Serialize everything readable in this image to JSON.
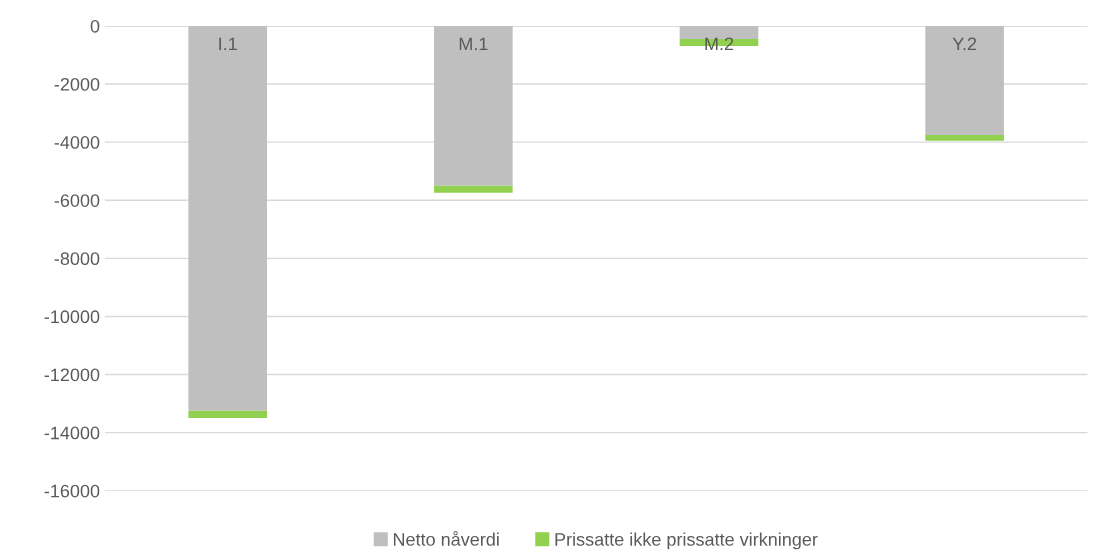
{
  "chart_data": {
    "type": "bar",
    "stacked": true,
    "categories": [
      "I.1",
      "M.1",
      "M.2",
      "Y.2"
    ],
    "series": [
      {
        "name": "Netto nåverdi",
        "color": "#bfbfbf",
        "values": [
          -13250,
          -5500,
          -450,
          -3750
        ]
      },
      {
        "name": "Prissatte ikke prissatte virkninger",
        "color": "#92d050",
        "values": [
          -250,
          -240,
          -240,
          -200
        ]
      }
    ],
    "ylim": [
      -16000,
      0
    ],
    "yticks": [
      0,
      -2000,
      -4000,
      -6000,
      -8000,
      -10000,
      -12000,
      -14000,
      -16000
    ],
    "grid": "y",
    "legend": "bottom"
  }
}
